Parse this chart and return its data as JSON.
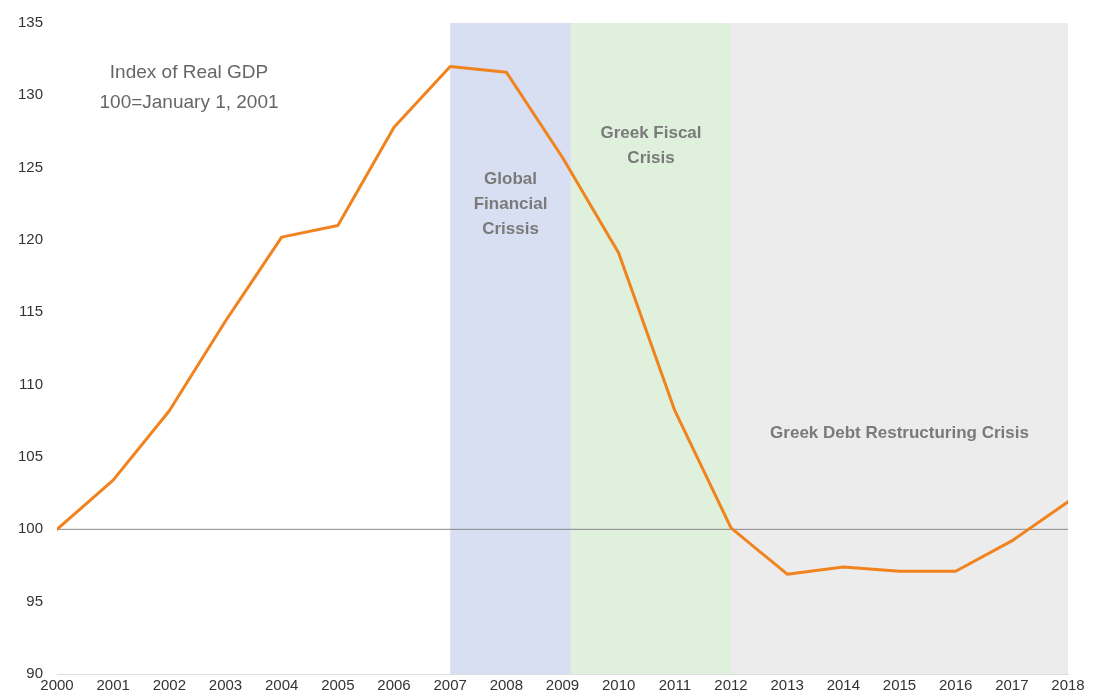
{
  "chart_data": {
    "type": "line",
    "title": "Index of Real GDP",
    "subtitle": "100=January 1, 2001",
    "x": [
      2000,
      2001,
      2002,
      2003,
      2004,
      2005,
      2006,
      2007,
      2008,
      2009,
      2010,
      2011,
      2012,
      2013,
      2014,
      2015,
      2016,
      2017,
      2018
    ],
    "series": [
      {
        "color": "#f0831e",
        "values": [
          100,
          103.4,
          108.2,
          114.4,
          120.2,
          121.0,
          127.8,
          132.0,
          131.6,
          125.7,
          119.1,
          108.2,
          100.1,
          96.9,
          97.4,
          97.1,
          97.1,
          99.2,
          101.9
        ]
      }
    ],
    "xlim": [
      2000,
      2018
    ],
    "xticks": [
      2000,
      2001,
      2002,
      2003,
      2004,
      2005,
      2006,
      2007,
      2008,
      2009,
      2010,
      2011,
      2012,
      2013,
      2014,
      2015,
      2016,
      2017,
      2018
    ],
    "ylim": [
      90,
      135
    ],
    "yticks": [
      90,
      95,
      100,
      105,
      110,
      115,
      120,
      125,
      130,
      135
    ],
    "ref_lines": [
      {
        "axis": "y",
        "value": 100,
        "color": "#888888"
      }
    ],
    "bands": [
      {
        "axis": "x",
        "from": 2007,
        "to": 2009.15,
        "label": "Global Financial Crissis",
        "color": "#d9dff2"
      },
      {
        "axis": "x",
        "from": 2009.15,
        "to": 2012,
        "label": "Greek Fiscal Crisis",
        "color": "#dff0dc"
      },
      {
        "axis": "x",
        "from": 2012,
        "to": 2018,
        "label": "Greek Debt Restructuring Crisis",
        "color": "#ececec"
      }
    ],
    "grid": false,
    "legend": false,
    "marker": "none",
    "line_style": "solid"
  }
}
